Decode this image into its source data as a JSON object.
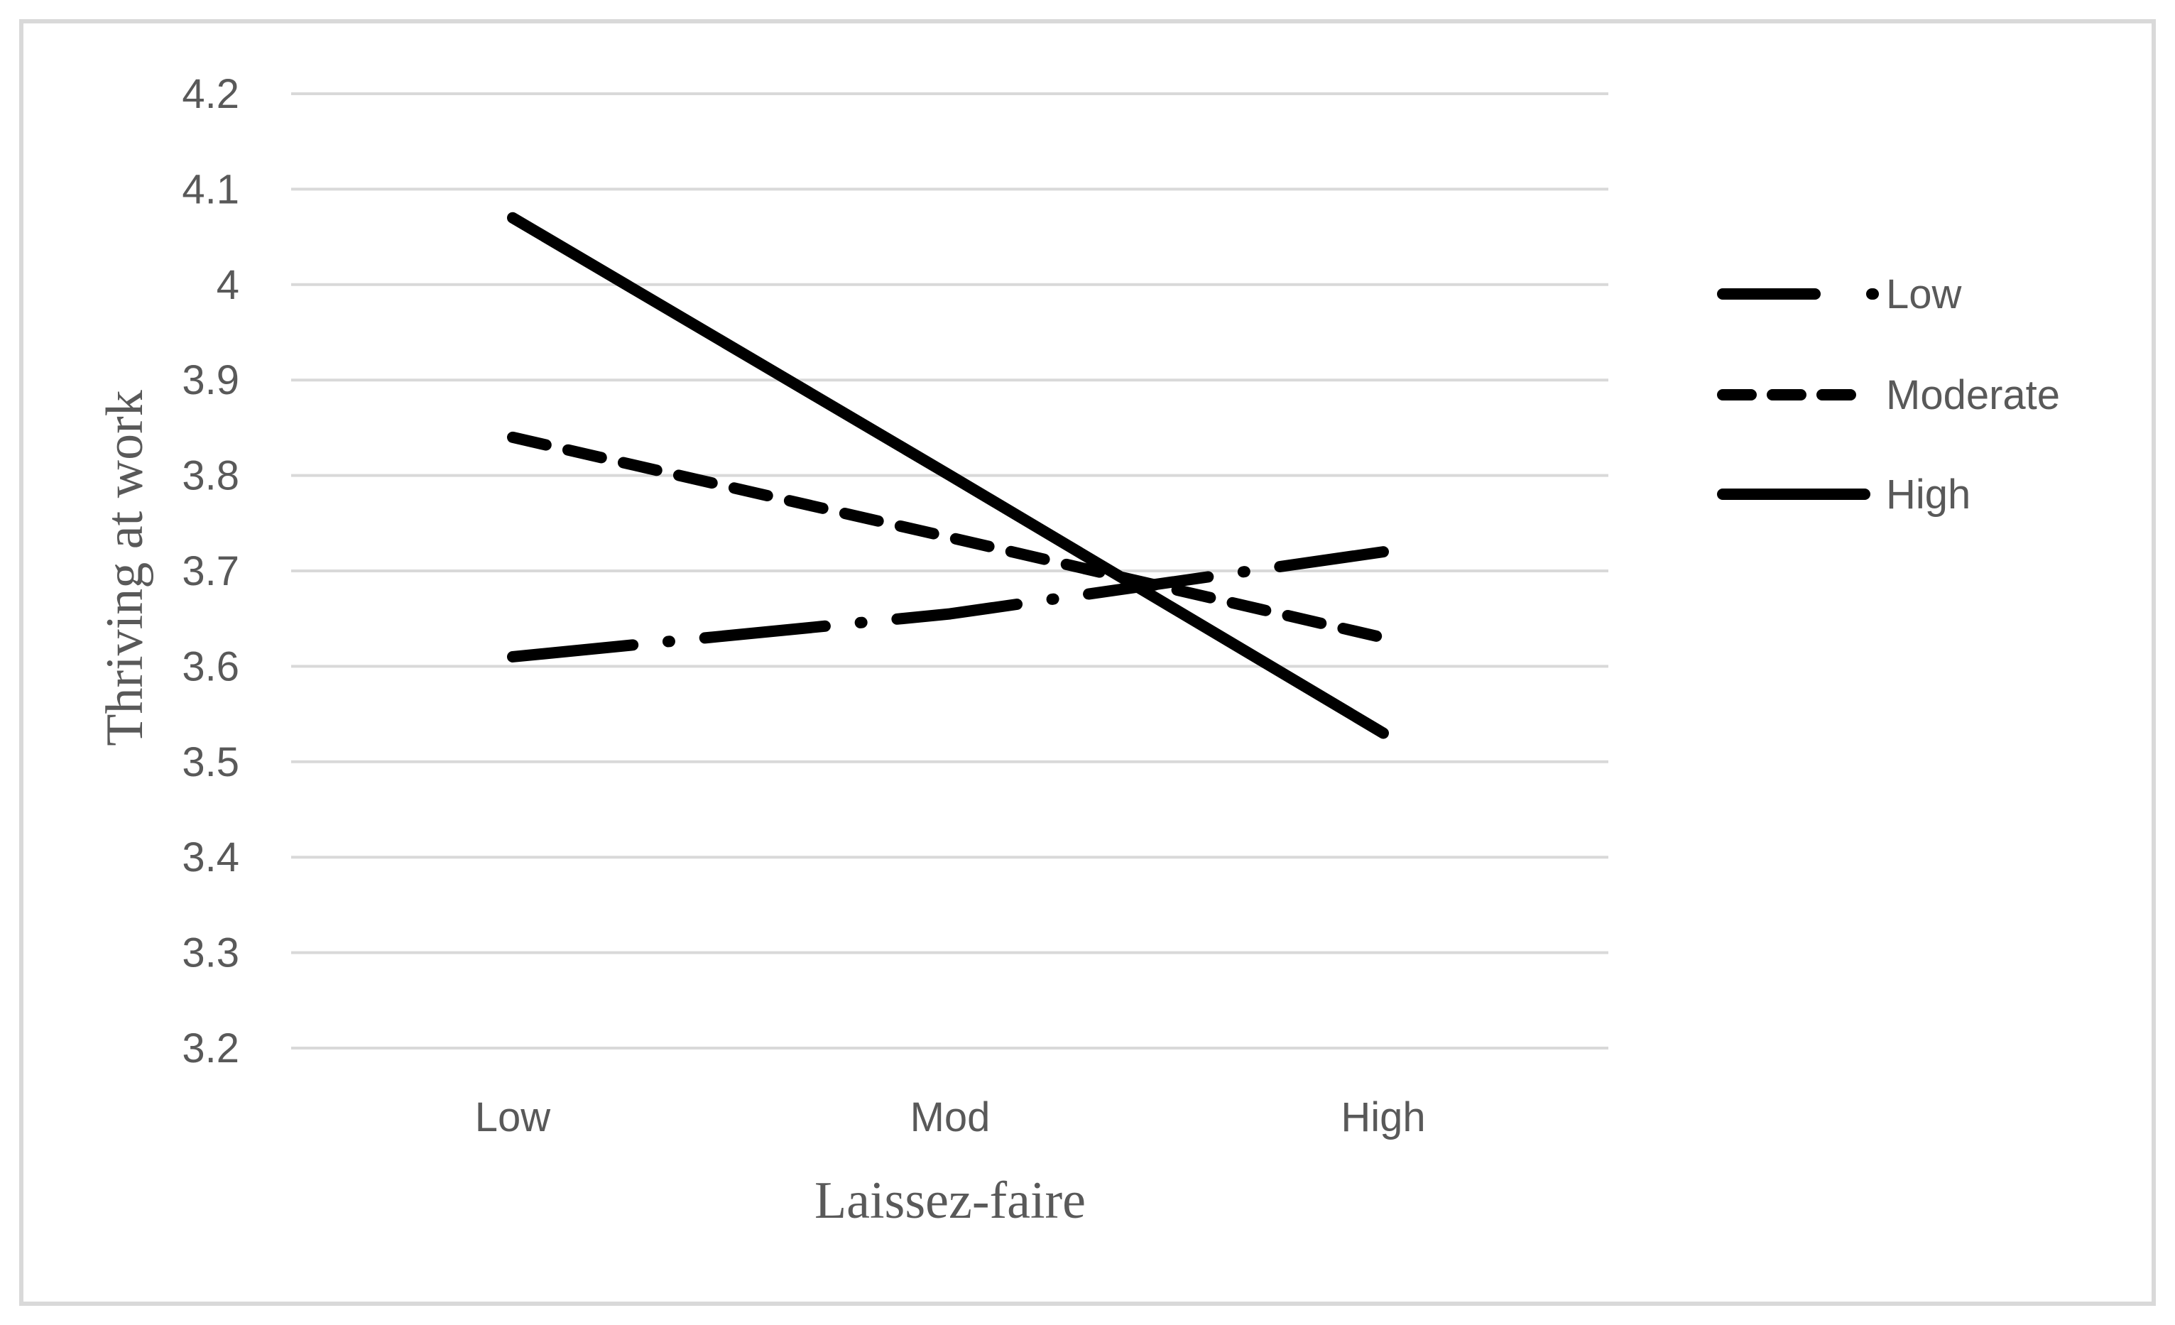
{
  "chart_data": {
    "type": "line",
    "title": "",
    "xlabel": "Laissez-faire",
    "ylabel": "Thriving at work",
    "categories": [
      "Low",
      "Mod",
      "High"
    ],
    "ylim": [
      3.2,
      4.2
    ],
    "yticks": [
      "3.2",
      "3.3",
      "3.4",
      "3.5",
      "3.6",
      "3.7",
      "3.8",
      "3.9",
      "4",
      "4.1",
      "4.2"
    ],
    "grid": "horizontal",
    "legend_position": "right",
    "series": [
      {
        "name": "Low",
        "values": [
          3.61,
          3.655,
          3.72
        ],
        "style": "long-dash-dot",
        "color": "#000000"
      },
      {
        "name": "Moderate",
        "values": [
          3.84,
          3.735,
          3.63
        ],
        "style": "dashed",
        "color": "#000000"
      },
      {
        "name": "High",
        "values": [
          4.07,
          3.8,
          3.53
        ],
        "style": "solid",
        "color": "#000000"
      }
    ]
  }
}
